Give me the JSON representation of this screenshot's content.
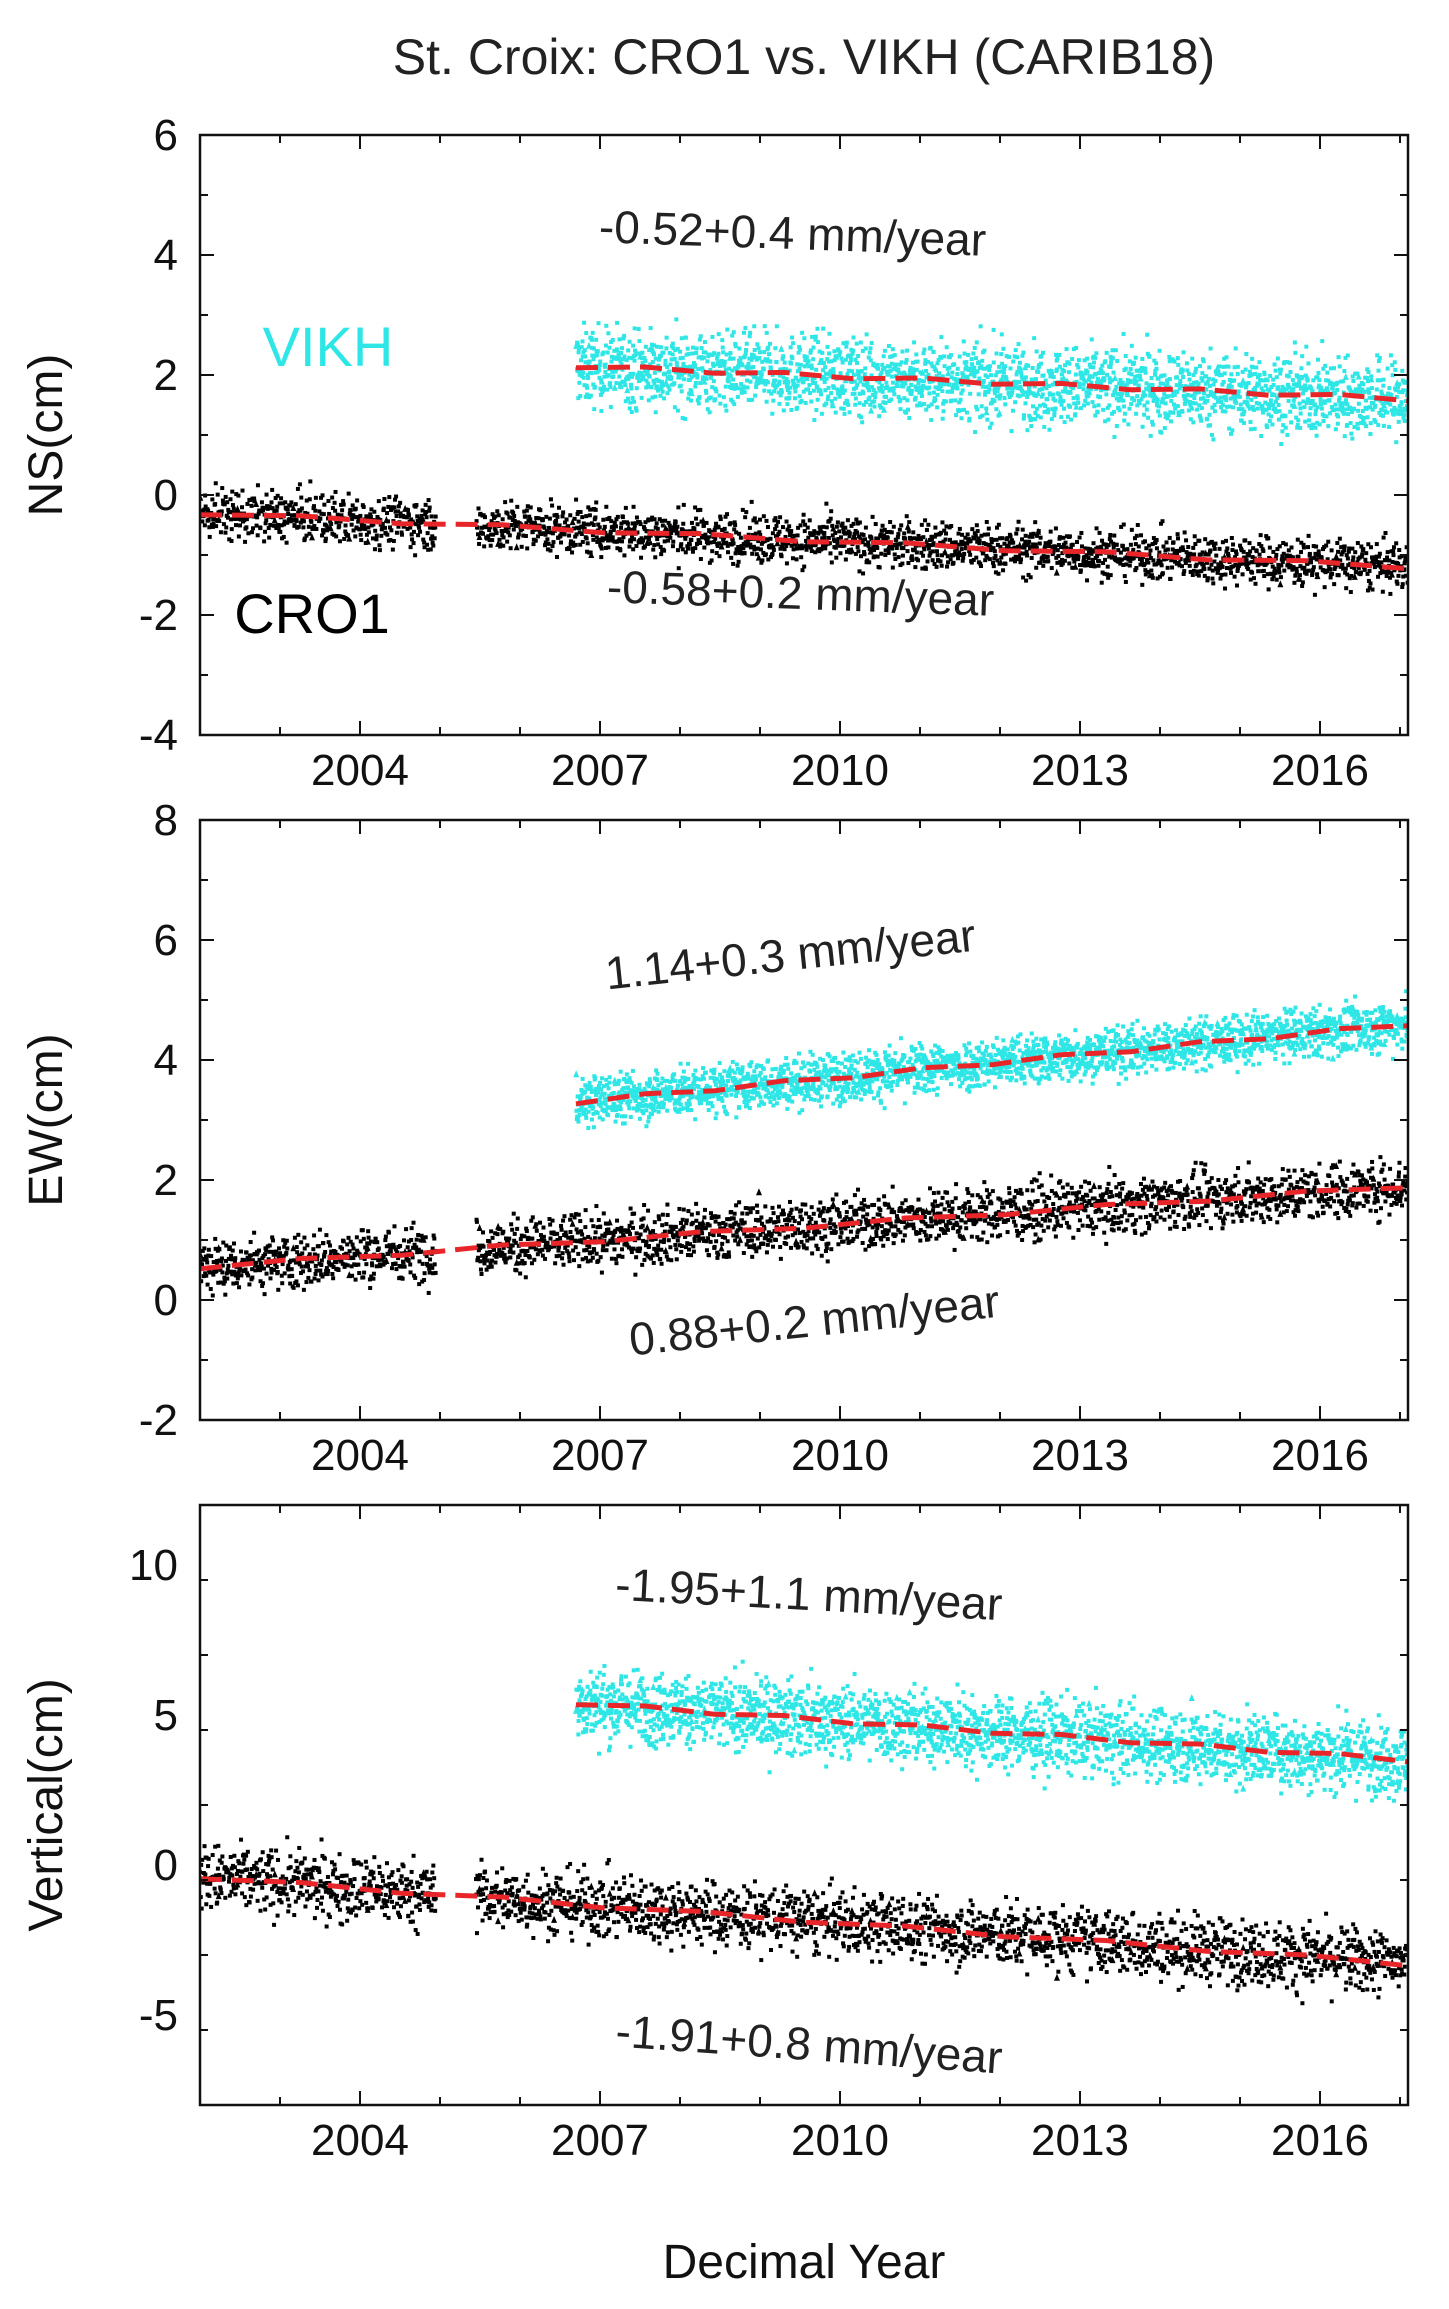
{
  "title": "St. Croix: CRO1 vs. VIKH (CARIB18)",
  "xlabel": "Decimal Year",
  "colors": {
    "cro1": "#000000",
    "vikh": "#2ee6e6",
    "trend": "#e8262a"
  },
  "chart_data": [
    {
      "type": "scatter",
      "ylabel": "NS(cm)",
      "xlim": [
        2002,
        2017.1
      ],
      "ylim": [
        -4,
        6
      ],
      "yticks": [
        -4,
        -2,
        0,
        2,
        4,
        6
      ],
      "xticks": [
        2004,
        2007,
        2010,
        2013,
        2016
      ],
      "series": [
        {
          "name": "VIKH",
          "start": 2006.7,
          "end": 2017.1,
          "trend": [
            2.15,
            1.6
          ],
          "spread": 1.4
        },
        {
          "name": "CRO1",
          "start": 2002.0,
          "end": 2017.1,
          "trend": [
            -0.3,
            -1.2
          ],
          "spread": 0.9,
          "gap": [
            2004.95,
            2005.45
          ]
        }
      ],
      "annotations": [
        {
          "text": "-0.52+0.4 mm/year",
          "x": 2009.4,
          "y": 4.1,
          "rotate": 2
        },
        {
          "text": "-0.58+0.2 mm/year",
          "x": 2009.5,
          "y": -1.9,
          "rotate": 2
        }
      ],
      "labels": [
        {
          "text": "VIKH",
          "x": 2003.6,
          "y": 2.15,
          "color": "vikh"
        },
        {
          "text": "CRO1",
          "x": 2003.4,
          "y": -2.3,
          "color": "cro1"
        }
      ]
    },
    {
      "type": "scatter",
      "ylabel": "EW(cm)",
      "xlim": [
        2002,
        2017.1
      ],
      "ylim": [
        -2,
        8
      ],
      "yticks": [
        -2,
        0,
        2,
        4,
        6,
        8
      ],
      "xticks": [
        2004,
        2007,
        2010,
        2013,
        2016
      ],
      "series": [
        {
          "name": "VIKH",
          "start": 2006.7,
          "end": 2017.1,
          "trend": [
            3.3,
            4.6
          ],
          "spread": 0.9
        },
        {
          "name": "CRO1",
          "start": 2002.0,
          "end": 2017.1,
          "trend": [
            0.55,
            1.9
          ],
          "spread": 1.0,
          "gap": [
            2004.95,
            2005.45
          ]
        }
      ],
      "annotations": [
        {
          "text": "1.14+0.3 mm/year",
          "x": 2009.4,
          "y": 5.5,
          "rotate": -6
        },
        {
          "text": "0.88+0.2 mm/year",
          "x": 2009.7,
          "y": -0.6,
          "rotate": -6
        }
      ],
      "labels": []
    },
    {
      "type": "scatter",
      "ylabel": "Vertical(cm)",
      "xlim": [
        2002,
        2017.1
      ],
      "ylim": [
        -8,
        12
      ],
      "yticks": [
        -5,
        0,
        5,
        10
      ],
      "xticks": [
        2004,
        2007,
        2010,
        2013,
        2016
      ],
      "series": [
        {
          "name": "VIKH",
          "start": 2006.7,
          "end": 2017.1,
          "trend": [
            5.4,
            3.5
          ],
          "spread": 2.6
        },
        {
          "name": "CRO1",
          "start": 2002.0,
          "end": 2017.1,
          "trend": [
            -0.4,
            -3.3
          ],
          "spread": 2.4,
          "gap": [
            2004.95,
            2005.45
          ]
        }
      ],
      "annotations": [
        {
          "text": "-1.95+1.1 mm/year",
          "x": 2009.6,
          "y": 8.5,
          "rotate": 3
        },
        {
          "text": "-1.91+0.8 mm/year",
          "x": 2009.6,
          "y": -6.5,
          "rotate": 4
        }
      ],
      "labels": []
    }
  ]
}
